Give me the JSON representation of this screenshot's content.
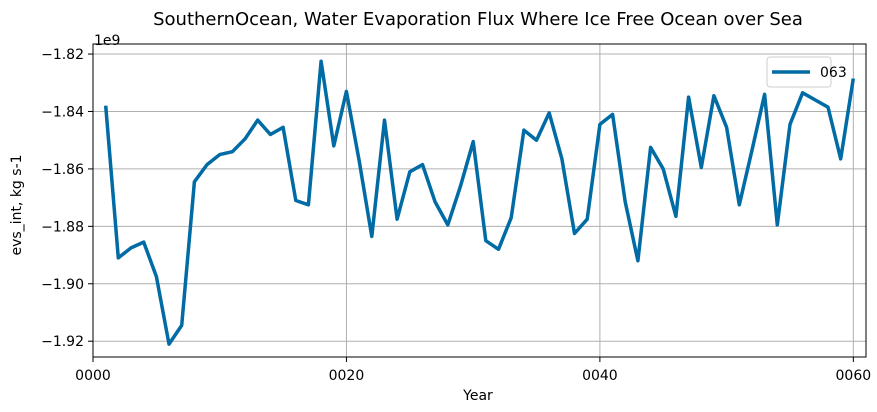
{
  "chart_data": {
    "type": "line",
    "title": "SouthernOcean, Water Evaporation Flux Where Ice Free Ocean over Sea",
    "xlabel": "Year",
    "ylabel": "evs_int, kg s-1",
    "y_offset_label": "1e9",
    "xlim": [
      0,
      61
    ],
    "ylim": [
      -1.9255,
      -1.8165
    ],
    "x_ticks": [
      0,
      20,
      40,
      60
    ],
    "x_tick_labels": [
      "0000",
      "0020",
      "0040",
      "0060"
    ],
    "y_ticks": [
      -1.92,
      -1.9,
      -1.88,
      -1.86,
      -1.84,
      -1.82
    ],
    "y_tick_labels": [
      "−1.92",
      "−1.90",
      "−1.88",
      "−1.86",
      "−1.84",
      "−1.82"
    ],
    "grid": true,
    "legend_position": "top-right",
    "series": [
      {
        "name": "063",
        "color": "#006ba4",
        "x": [
          1,
          2,
          3,
          4,
          5,
          6,
          7,
          8,
          9,
          10,
          11,
          12,
          13,
          14,
          15,
          16,
          17,
          18,
          19,
          20,
          21,
          22,
          23,
          24,
          25,
          26,
          27,
          28,
          29,
          30,
          31,
          32,
          33,
          34,
          35,
          36,
          37,
          38,
          39,
          40,
          41,
          42,
          43,
          44,
          45,
          46,
          47,
          48,
          49,
          50,
          51,
          52,
          53,
          54,
          55,
          56,
          57,
          58,
          59,
          60
        ],
        "values": [
          -1.838,
          -1.891,
          -1.8875,
          -1.8855,
          -1.8975,
          -1.921,
          -1.9145,
          -1.8645,
          -1.8585,
          -1.855,
          -1.854,
          -1.8495,
          -1.843,
          -1.848,
          -1.8455,
          -1.871,
          -1.8725,
          -1.8225,
          -1.852,
          -1.833,
          -1.857,
          -1.8835,
          -1.843,
          -1.8775,
          -1.861,
          -1.8585,
          -1.8715,
          -1.8795,
          -1.866,
          -1.8505,
          -1.885,
          -1.888,
          -1.877,
          -1.8465,
          -1.85,
          -1.8405,
          -1.8565,
          -1.8825,
          -1.8775,
          -1.8445,
          -1.841,
          -1.8715,
          -1.892,
          -1.8525,
          -1.86,
          -1.8765,
          -1.835,
          -1.8595,
          -1.8345,
          -1.8455,
          -1.8725,
          -1.8535,
          -1.834,
          -1.8795,
          -1.8445,
          -1.8335,
          -1.836,
          -1.8385,
          -1.8565,
          -1.8285
        ]
      }
    ]
  }
}
